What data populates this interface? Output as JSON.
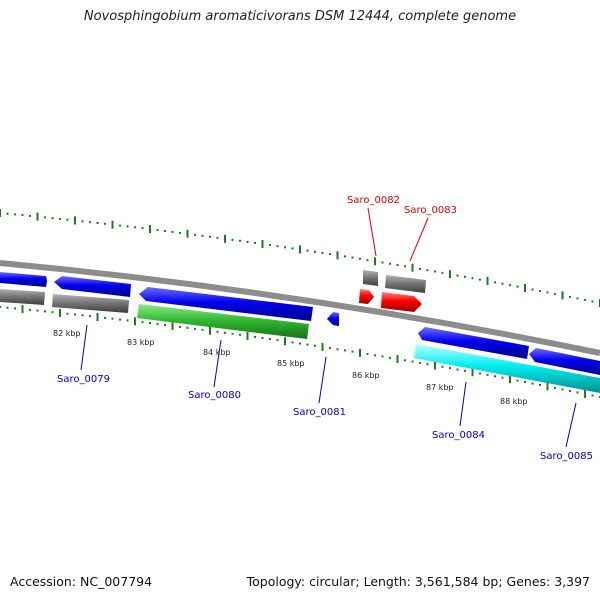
{
  "title": "Novosphingobium aromaticivorans DSM 12444, complete genome",
  "footer": {
    "accession": "Accession: NC_007794",
    "summary": "Topology: circular; Length: 3,561,584 bp; Genes: 3,397"
  },
  "colors": {
    "backbone": "#8c8c8c",
    "tick": "#1e7a1e",
    "label_blue": "#0000cc",
    "label_red": "#dd0000",
    "gene_blue": "#0000ee",
    "gene_gray": "#777777",
    "gene_green": "#33bb33",
    "gene_red": "#ff0000",
    "gene_cyan": "#00eeee"
  },
  "scale": {
    "unit": "kbp",
    "labels": [
      "82 kbp",
      "83 kbp",
      "84 kbp",
      "85 kbp",
      "86 kbp",
      "87 kbp",
      "88 kbp"
    ]
  },
  "gene_labels": [
    {
      "name": "Saro_0079",
      "color": "blue"
    },
    {
      "name": "Saro_0080",
      "color": "blue"
    },
    {
      "name": "Saro_0081",
      "color": "blue"
    },
    {
      "name": "Saro_0082",
      "color": "red"
    },
    {
      "name": "Saro_0083",
      "color": "red"
    },
    {
      "name": "Saro_0084",
      "color": "blue"
    },
    {
      "name": "Saro_0085",
      "color": "blue"
    }
  ]
}
